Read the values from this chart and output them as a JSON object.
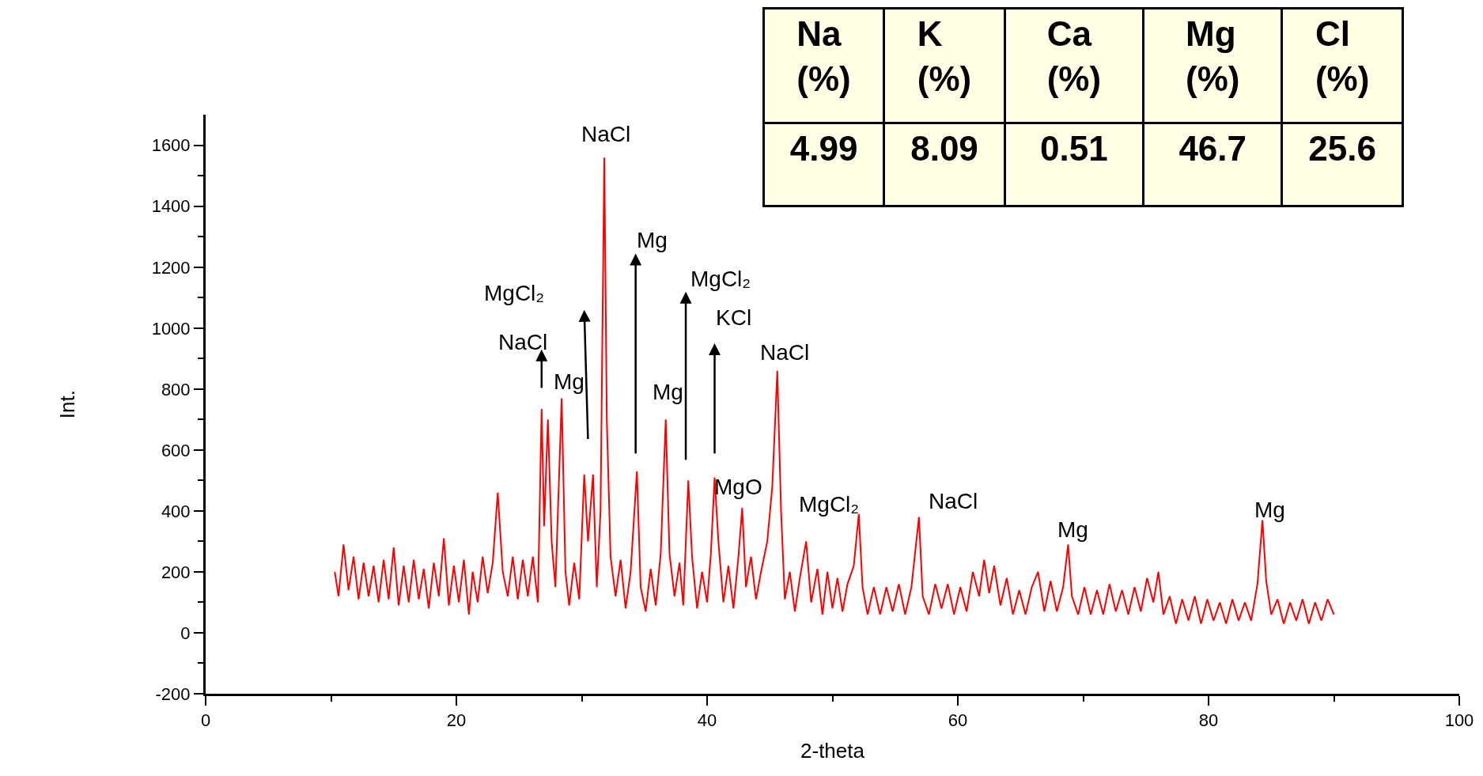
{
  "chart_data": [
    {
      "type": "line",
      "xlabel": "2-theta",
      "ylabel": "Int.",
      "xlim": [
        0,
        100
      ],
      "xticks": [
        0,
        20,
        40,
        60,
        80,
        100
      ],
      "ylim": [
        -200,
        1700
      ],
      "yticks": [
        -200,
        0,
        200,
        400,
        600,
        800,
        1000,
        1200,
        1400,
        1600
      ],
      "marker": "none",
      "line_style": "solid",
      "x": [
        10.3,
        10.6,
        11.0,
        11.4,
        11.8,
        12.2,
        12.6,
        13.0,
        13.4,
        13.8,
        14.2,
        14.6,
        15.0,
        15.4,
        15.8,
        16.2,
        16.6,
        17.0,
        17.4,
        17.8,
        18.2,
        18.6,
        19.0,
        19.4,
        19.8,
        20.2,
        20.6,
        21.0,
        21.3,
        21.7,
        22.1,
        22.5,
        22.9,
        23.3,
        23.7,
        24.1,
        24.5,
        24.9,
        25.3,
        25.7,
        26.1,
        26.5,
        26.8,
        27.0,
        27.3,
        27.6,
        27.9,
        28.4,
        28.7,
        29.0,
        29.4,
        29.8,
        30.2,
        30.5,
        30.9,
        31.2,
        31.5,
        31.8,
        32.0,
        32.3,
        32.7,
        33.1,
        33.5,
        33.9,
        34.4,
        34.7,
        35.1,
        35.5,
        35.9,
        36.3,
        36.7,
        37.0,
        37.4,
        37.8,
        38.1,
        38.5,
        38.8,
        39.2,
        39.6,
        40.0,
        40.3,
        40.6,
        40.9,
        41.3,
        41.7,
        42.1,
        42.5,
        42.8,
        43.1,
        43.5,
        43.9,
        44.3,
        44.8,
        45.2,
        45.6,
        45.9,
        46.2,
        46.6,
        47.0,
        47.4,
        47.9,
        48.3,
        48.8,
        49.2,
        49.6,
        50.0,
        50.4,
        50.8,
        51.2,
        51.7,
        52.1,
        52.4,
        52.8,
        53.3,
        53.8,
        54.3,
        54.8,
        55.3,
        55.8,
        56.3,
        56.9,
        57.2,
        57.7,
        58.2,
        58.7,
        59.2,
        59.7,
        60.2,
        60.7,
        61.2,
        61.7,
        62.1,
        62.5,
        62.9,
        63.4,
        63.9,
        64.4,
        64.9,
        65.4,
        65.9,
        66.4,
        66.9,
        67.4,
        67.9,
        68.4,
        68.8,
        69.1,
        69.6,
        70.1,
        70.6,
        71.1,
        71.6,
        72.1,
        72.6,
        73.1,
        73.6,
        74.1,
        74.6,
        75.1,
        75.6,
        76.0,
        76.4,
        76.9,
        77.4,
        77.9,
        78.4,
        78.9,
        79.4,
        79.9,
        80.4,
        80.9,
        81.4,
        81.9,
        82.4,
        82.9,
        83.4,
        83.9,
        84.3,
        84.6,
        85.0,
        85.5,
        86.0,
        86.5,
        87.0,
        87.5,
        88.0,
        88.5,
        89.0,
        89.5,
        90.0
      ],
      "series": [
        {
          "color": "#ff0000",
          "values": [
            200,
            120,
            290,
            140,
            250,
            110,
            230,
            120,
            220,
            100,
            240,
            110,
            280,
            90,
            220,
            100,
            240,
            110,
            210,
            80,
            230,
            120,
            310,
            90,
            220,
            100,
            240,
            60,
            200,
            100,
            250,
            130,
            230,
            460,
            200,
            120,
            250,
            110,
            240,
            120,
            250,
            100,
            735,
            350,
            700,
            300,
            150,
            770,
            200,
            90,
            230,
            110,
            520,
            300,
            520,
            150,
            400,
            1560,
            700,
            250,
            120,
            240,
            80,
            200,
            530,
            150,
            70,
            210,
            90,
            260,
            700,
            260,
            120,
            230,
            90,
            500,
            250,
            80,
            200,
            100,
            260,
            510,
            300,
            100,
            220,
            80,
            250,
            410,
            150,
            250,
            110,
            200,
            300,
            480,
            860,
            400,
            110,
            200,
            70,
            180,
            300,
            100,
            210,
            60,
            200,
            80,
            180,
            70,
            160,
            220,
            390,
            150,
            60,
            150,
            60,
            150,
            70,
            160,
            60,
            150,
            380,
            120,
            60,
            160,
            80,
            160,
            60,
            150,
            70,
            200,
            120,
            240,
            130,
            220,
            90,
            180,
            60,
            140,
            60,
            150,
            200,
            70,
            170,
            70,
            150,
            290,
            120,
            60,
            150,
            60,
            140,
            60,
            160,
            70,
            140,
            60,
            150,
            70,
            180,
            100,
            200,
            60,
            120,
            30,
            110,
            40,
            120,
            30,
            110,
            40,
            100,
            30,
            110,
            40,
            100,
            40,
            160,
            370,
            170,
            60,
            110,
            30,
            100,
            40,
            110,
            30,
            100,
            40,
            110,
            60
          ]
        }
      ],
      "annotations": [
        "NaCl",
        "MgCl₂",
        "NaCl",
        "Mg",
        "Mg",
        "MgCl₂",
        "KCl",
        "NaCl",
        "Mg",
        "MgO",
        "MgCl₂",
        "NaCl",
        "Mg",
        "Mg"
      ]
    },
    {
      "type": "other",
      "categories": [
        "Na (%)",
        "K (%)",
        "Ca (%)",
        "Mg (%)",
        "Cl (%)"
      ],
      "value_labels": [
        "4.99",
        "8.09",
        "0.51",
        "46.7",
        "25.6"
      ]
    }
  ]
}
